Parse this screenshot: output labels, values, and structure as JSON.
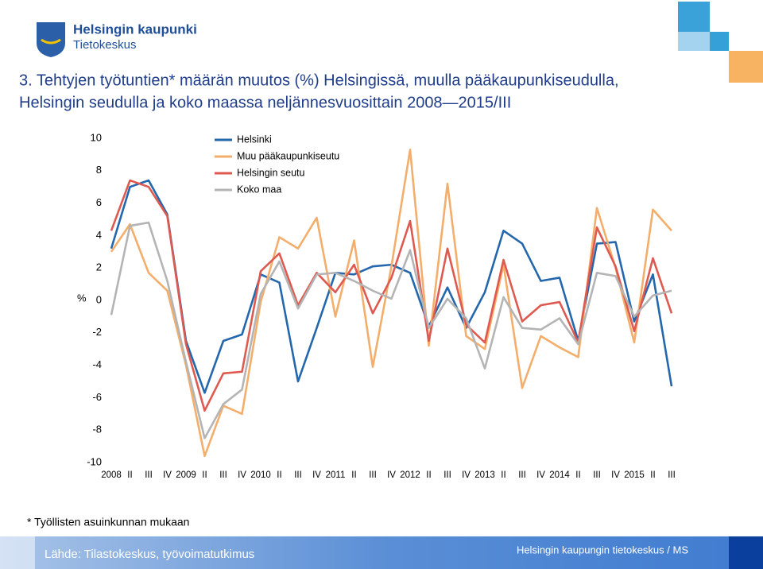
{
  "header": {
    "org": "Helsingin kaupunki",
    "unit": "Tietokeskus"
  },
  "chart_data": {
    "type": "line",
    "title": [
      "3. Tehtyjen työtuntien* määrän muutos (%) Helsingissä, muulla pääkaupunkiseudulla,",
      "Helsingin seudulla ja koko maassa neljännesvuosittain 2008—2015/III"
    ],
    "ylabel": "%",
    "categories": [
      "2008",
      "II",
      "III",
      "IV",
      "2009",
      "II",
      "III",
      "IV",
      "2010",
      "II",
      "III",
      "IV",
      "2011",
      "II",
      "III",
      "IV",
      "2012",
      "II",
      "III",
      "IV",
      "2013",
      "II",
      "III",
      "IV",
      "2014",
      "II",
      "III",
      "IV",
      "2015",
      "II",
      "III"
    ],
    "ylim": [
      -10,
      10
    ],
    "yticks": [
      -10,
      -8,
      -6,
      -4,
      -2,
      0,
      2,
      4,
      6,
      8,
      10
    ],
    "grid": false,
    "legend": "upper left",
    "series": [
      {
        "name": "Helsinki",
        "color": "#2467ad",
        "values": [
          3.2,
          7.0,
          7.4,
          5.3,
          -2.5,
          -5.7,
          -2.5,
          -2.1,
          1.6,
          1.1,
          -5.0,
          -1.7,
          1.7,
          1.6,
          2.1,
          2.2,
          1.7,
          -1.6,
          0.8,
          -1.7,
          0.5,
          4.3,
          3.5,
          1.2,
          1.4,
          -2.5,
          3.5,
          3.6,
          -1.3,
          1.6,
          -5.3
        ]
      },
      {
        "name": "Muu pääkaupunkiseutu",
        "color": "#f3ae6c",
        "values": [
          3.0,
          4.7,
          1.7,
          0.6,
          -4.0,
          -9.6,
          -6.5,
          -7.0,
          -0.1,
          3.9,
          3.2,
          5.1,
          -1.0,
          3.7,
          -4.1,
          2.1,
          9.3,
          -2.8,
          7.2,
          -2.2,
          -3.0,
          2.2,
          -5.4,
          -2.2,
          -2.9,
          -3.5,
          5.7,
          2.0,
          -2.6,
          5.6,
          4.3
        ]
      },
      {
        "name": "Helsingin seutu",
        "color": "#de5a50",
        "values": [
          4.3,
          7.4,
          7.0,
          5.2,
          -2.7,
          -6.8,
          -4.5,
          -4.4,
          1.8,
          2.9,
          -0.3,
          1.7,
          0.5,
          2.2,
          -0.8,
          1.4,
          4.9,
          -2.5,
          3.2,
          -1.5,
          -2.6,
          2.5,
          -1.3,
          -0.3,
          -0.1,
          -2.6,
          4.5,
          2.1,
          -1.9,
          2.6,
          -0.8
        ]
      },
      {
        "name": "Koko maa",
        "color": "#b4b4b4",
        "values": [
          -0.9,
          4.6,
          4.8,
          1.2,
          -3.8,
          -8.5,
          -6.4,
          -5.5,
          0.4,
          2.4,
          -0.5,
          1.6,
          1.7,
          1.2,
          0.6,
          0.1,
          3.1,
          -1.7,
          0.1,
          -1.1,
          -4.2,
          0.2,
          -1.7,
          -1.8,
          -1.1,
          -2.7,
          1.7,
          1.5,
          -1.0,
          0.3,
          0.6
        ]
      }
    ]
  },
  "footnote": "* Työllisten asuinkunnan mukaan",
  "footer": {
    "source": "Lähde: Tilastokeskus, työvoimatutkimus",
    "credit": "Helsingin kaupungin tietokeskus / MS"
  }
}
